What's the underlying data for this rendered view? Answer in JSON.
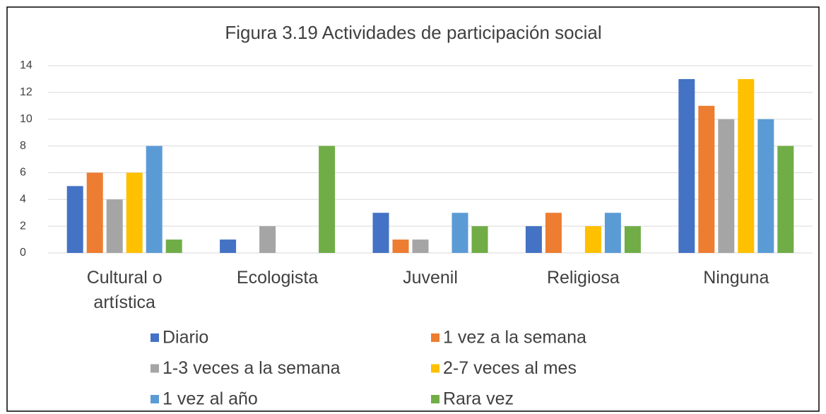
{
  "chart_data": {
    "type": "bar",
    "title": "Figura 3.19 Actividades de participación social",
    "categories": [
      "Cultural o artística",
      "Ecologista",
      "Juvenil",
      "Religiosa",
      "Ninguna"
    ],
    "series": [
      {
        "name": "Diario",
        "color": "#4472c4",
        "values": [
          5,
          1,
          3,
          2,
          13
        ]
      },
      {
        "name": "1 vez a la semana",
        "color": "#ed7d31",
        "values": [
          6,
          0,
          1,
          3,
          11
        ]
      },
      {
        "name": "1-3 veces a la semana",
        "color": "#a5a5a5",
        "values": [
          4,
          2,
          1,
          0,
          10
        ]
      },
      {
        "name": "2-7 veces al mes",
        "color": "#ffc000",
        "values": [
          6,
          0,
          0,
          2,
          13
        ]
      },
      {
        "name": "1 vez al año",
        "color": "#5b9bd5",
        "values": [
          8,
          0,
          3,
          3,
          10
        ]
      },
      {
        "name": "Rara vez",
        "color": "#70ad47",
        "values": [
          1,
          8,
          2,
          2,
          8
        ]
      }
    ],
    "ylim": [
      0,
      14
    ],
    "yticks": [
      0,
      2,
      4,
      6,
      8,
      10,
      12,
      14
    ],
    "grid": true,
    "legend": "bottom"
  }
}
